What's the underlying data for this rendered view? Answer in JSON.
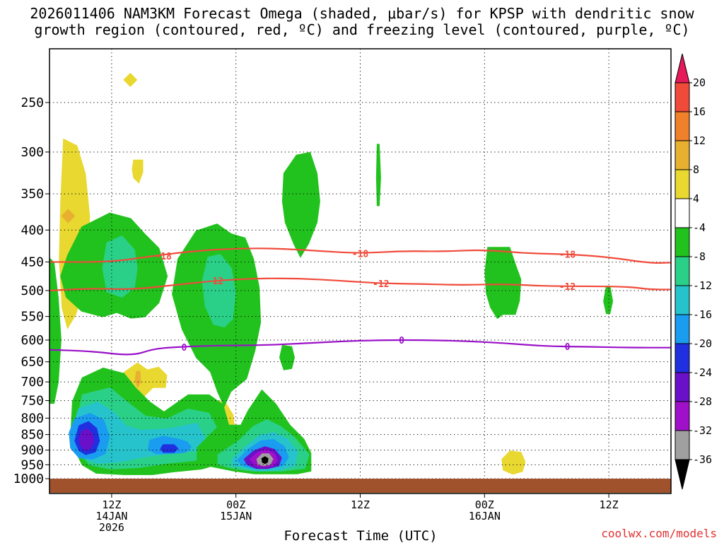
{
  "title": {
    "line1": "2026011406 NAM3KM Forecast Omega (shaded, μbar/s) for KPSP with dendritic snow",
    "line2": "growth region (contoured, red, ºC) and freezing level (contoured, purple, ºC)"
  },
  "credit": "coolwx.com/models",
  "chart_data": {
    "type": "heatmap",
    "title": "2026011406 NAM3KM Forecast Omega (shaded, μbar/s) for KPSP with dendritic snow growth region (contoured, red, ºC) and freezing level (contoured, purple, ºC)",
    "xlabel": "Forecast Time (UTC)",
    "ylabel": "",
    "x_unit": "hours since 2026-01-14 00Z",
    "xlim": [
      6,
      66
    ],
    "y_unit": "pressure (hPa)",
    "ylim": [
      1000,
      200
    ],
    "y_scale": "log-pressure",
    "grid": true,
    "y_ticks": [
      250,
      300,
      350,
      400,
      450,
      500,
      550,
      600,
      650,
      700,
      750,
      800,
      850,
      900,
      950,
      1000
    ],
    "x_ticks": [
      {
        "hour": 12,
        "lines": [
          "12Z",
          "14JAN",
          "2026"
        ]
      },
      {
        "hour": 24,
        "lines": [
          "00Z",
          "15JAN"
        ]
      },
      {
        "hour": 36,
        "lines": [
          "12Z"
        ]
      },
      {
        "hour": 48,
        "lines": [
          "00Z",
          "16JAN"
        ]
      },
      {
        "hour": 60,
        "lines": [
          "12Z"
        ]
      }
    ],
    "colorbar": {
      "unit": "μbar/s",
      "labels": [
        "20",
        "16",
        "12",
        "8",
        "4",
        "-4",
        "-8",
        "-12",
        "-16",
        "-20",
        "-24",
        "-28",
        "-32",
        "-36"
      ],
      "colors": [
        "#e6195a",
        "#f04a3a",
        "#f0802a",
        "#e8b030",
        "#e8d830",
        "#ffffff",
        "#22c21e",
        "#2ad088",
        "#27c3cc",
        "#1a9cf0",
        "#2030e0",
        "#6a10c8",
        "#a010c8",
        "#a0a0a0",
        "#000000"
      ]
    },
    "omega_regions": [
      {
        "level": 4,
        "hour": 8.0,
        "p": 380
      },
      {
        "level": 8,
        "hour": 7.8,
        "p": 380
      },
      {
        "level": 4,
        "hour": 13.8,
        "p": 230
      },
      {
        "level": 4,
        "hour": 14.5,
        "p": 320
      },
      {
        "level": 4,
        "hour": 14.5,
        "p": 690
      },
      {
        "level": 8,
        "hour": 14.5,
        "p": 690
      },
      {
        "level": 4,
        "hour": 22.8,
        "p": 790
      },
      {
        "level": 4,
        "hour": 51.0,
        "p": 940
      },
      {
        "level": -4,
        "hour": 12.5,
        "p": 450
      },
      {
        "level": -8,
        "hour": 13.0,
        "p": 460
      },
      {
        "level": -4,
        "hour": 21.5,
        "p": 520
      },
      {
        "level": -8,
        "hour": 22.5,
        "p": 490
      },
      {
        "level": -4,
        "hour": 30.5,
        "p": 360
      },
      {
        "level": -4,
        "hour": 37.8,
        "p": 330
      },
      {
        "level": -4,
        "hour": 49.5,
        "p": 480
      },
      {
        "level": -4,
        "hour": 60.0,
        "p": 520
      },
      {
        "level": -4,
        "hour": 29.0,
        "p": 640
      },
      {
        "level": -4,
        "hour": 6.2,
        "p": 600
      },
      {
        "level": -4,
        "hour": 10.5,
        "p": 880
      },
      {
        "level": -8,
        "hour": 10.5,
        "p": 880
      },
      {
        "level": -12,
        "hour": 10.0,
        "p": 880
      },
      {
        "level": -16,
        "hour": 9.5,
        "p": 880
      },
      {
        "level": -20,
        "hour": 9.5,
        "p": 870
      },
      {
        "level": -24,
        "hour": 9.5,
        "p": 870
      },
      {
        "level": -16,
        "hour": 17.0,
        "p": 890
      },
      {
        "level": -20,
        "hour": 17.5,
        "p": 895
      },
      {
        "level": -4,
        "hour": 26.5,
        "p": 910
      },
      {
        "level": -8,
        "hour": 27.0,
        "p": 915
      },
      {
        "level": -12,
        "hour": 27.0,
        "p": 920
      },
      {
        "level": -16,
        "hour": 26.8,
        "p": 920
      },
      {
        "level": -24,
        "hour": 26.8,
        "p": 930
      },
      {
        "level": -28,
        "hour": 26.8,
        "p": 930
      },
      {
        "level": -32,
        "hour": 26.8,
        "p": 935
      },
      {
        "level": -36,
        "hour": 26.8,
        "p": 935
      }
    ],
    "contours": [
      {
        "name": "-18",
        "color": "#f04a3a",
        "label": "-18",
        "points": [
          [
            6,
            450
          ],
          [
            12,
            450
          ],
          [
            16,
            440
          ],
          [
            20,
            432
          ],
          [
            24,
            428
          ],
          [
            28,
            428
          ],
          [
            32,
            432
          ],
          [
            36,
            436
          ],
          [
            40,
            432
          ],
          [
            44,
            433
          ],
          [
            48,
            430
          ],
          [
            52,
            436
          ],
          [
            56,
            437
          ],
          [
            60,
            442
          ],
          [
            64,
            452
          ],
          [
            66,
            451
          ]
        ],
        "labels_at": [
          [
            17,
            440
          ],
          [
            36,
            436
          ],
          [
            56,
            437
          ]
        ]
      },
      {
        "name": "-12",
        "color": "#f04a3a",
        "label": "-12",
        "points": [
          [
            6,
            500
          ],
          [
            10,
            496
          ],
          [
            14,
            498
          ],
          [
            18,
            490
          ],
          [
            22,
            482
          ],
          [
            26,
            478
          ],
          [
            30,
            478
          ],
          [
            34,
            482
          ],
          [
            38,
            487
          ],
          [
            42,
            488
          ],
          [
            46,
            490
          ],
          [
            50,
            488
          ],
          [
            54,
            492
          ],
          [
            58,
            492
          ],
          [
            62,
            493
          ],
          [
            64,
            498
          ],
          [
            66,
            498
          ]
        ],
        "labels_at": [
          [
            22,
            482
          ],
          [
            38,
            487
          ],
          [
            56,
            492
          ]
        ]
      },
      {
        "name": "0",
        "color": "#9a10c8",
        "label": "0",
        "points": [
          [
            6,
            622
          ],
          [
            10,
            625
          ],
          [
            14,
            636
          ],
          [
            16,
            620
          ],
          [
            18,
            616
          ],
          [
            22,
            612
          ],
          [
            26,
            612
          ],
          [
            30,
            608
          ],
          [
            34,
            603
          ],
          [
            38,
            600
          ],
          [
            42,
            600
          ],
          [
            46,
            602
          ],
          [
            50,
            607
          ],
          [
            54,
            614
          ],
          [
            58,
            615
          ],
          [
            62,
            617
          ],
          [
            66,
            617
          ]
        ],
        "labels_at": [
          [
            19,
            616
          ],
          [
            40,
            600
          ],
          [
            56,
            614
          ]
        ]
      }
    ]
  }
}
